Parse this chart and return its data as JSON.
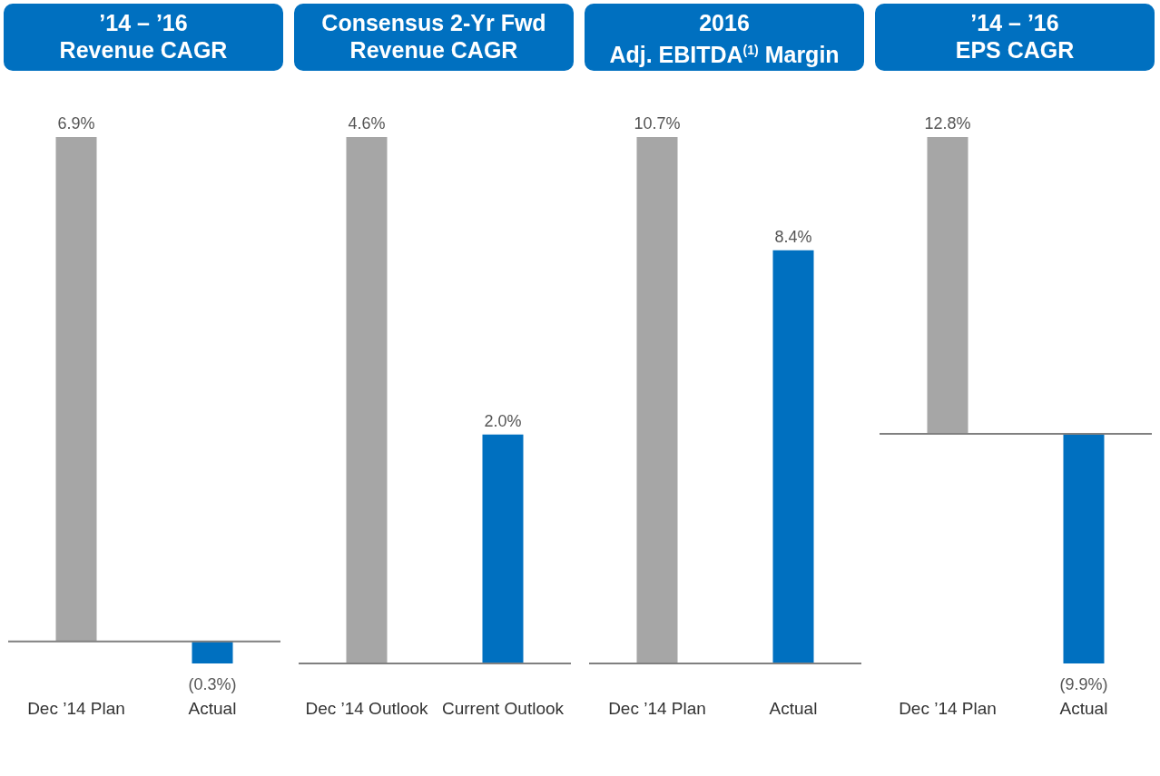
{
  "chart_data": [
    {
      "type": "bar",
      "title": "’14 – ’16\nRevenue CAGR",
      "categories": [
        "Dec ’14 Plan",
        "Actual"
      ],
      "values": [
        6.9,
        -0.3
      ],
      "colors": [
        "#a6a6a6",
        "#0070c0"
      ],
      "value_labels": [
        "6.9%",
        "(0.3%)"
      ]
    },
    {
      "type": "bar",
      "title": "Consensus 2-Yr Fwd\nRevenue CAGR",
      "categories": [
        "Dec ’14 Outlook",
        "Current Outlook"
      ],
      "values": [
        4.6,
        2.0
      ],
      "colors": [
        "#a6a6a6",
        "#0070c0"
      ],
      "value_labels": [
        "4.6%",
        "2.0%"
      ]
    },
    {
      "type": "bar",
      "title": "2016\nAdj. EBITDA$^{(1)}$ Margin",
      "categories": [
        "Dec ’14 Plan",
        "Actual"
      ],
      "values": [
        10.7,
        8.4
      ],
      "colors": [
        "#a6a6a6",
        "#0070c0"
      ],
      "value_labels": [
        "10.7%",
        "8.4%"
      ]
    },
    {
      "type": "bar",
      "title": "’14 – ’16\nEPS CAGR",
      "categories": [
        "Dec ’14 Plan",
        "Actual"
      ],
      "values": [
        12.8,
        -9.9
      ],
      "colors": [
        "#a6a6a6",
        "#0070c0"
      ],
      "value_labels": [
        "12.8%",
        "(9.9%)"
      ]
    }
  ]
}
